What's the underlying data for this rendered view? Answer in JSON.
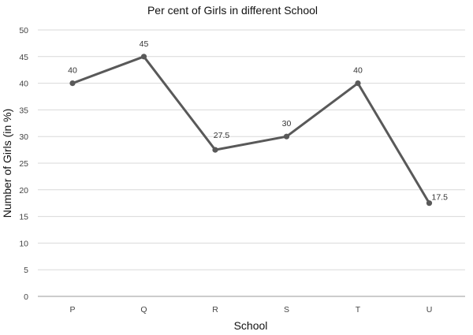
{
  "chart_data": {
    "type": "line",
    "title": "Per cent of Girls in different School",
    "xlabel": "School",
    "ylabel": "Number of Girls (in %)",
    "categories": [
      "P",
      "Q",
      "R",
      "S",
      "T",
      "U"
    ],
    "series": [
      {
        "values": [
          40,
          45,
          27.5,
          30,
          40,
          17.5
        ],
        "color": "#595959"
      }
    ],
    "data_labels": [
      "40",
      "45",
      "27.5",
      "30",
      "40",
      "17.5"
    ],
    "ylim": [
      0,
      50
    ],
    "yticks": [
      "0",
      "5",
      "10",
      "15",
      "20",
      "25",
      "30",
      "35",
      "40",
      "45",
      "50"
    ],
    "grid": true,
    "legend": "none"
  }
}
